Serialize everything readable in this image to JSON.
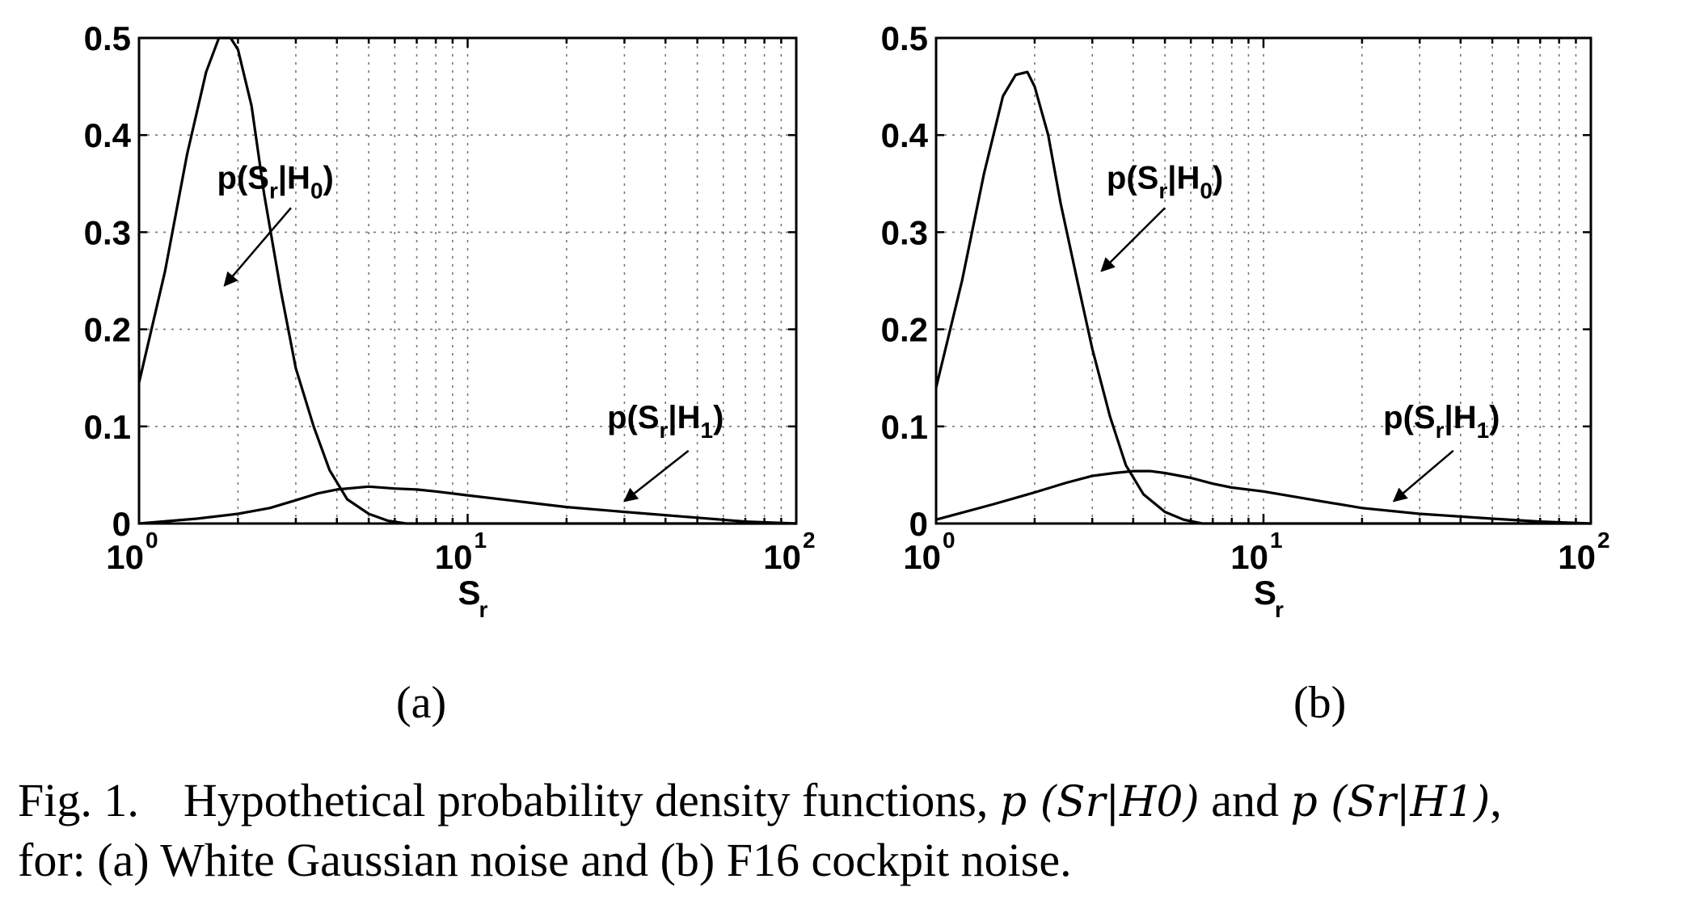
{
  "figure": {
    "caption": {
      "fig_label": "Fig. 1.",
      "text_before": "Hypothetical probability density functions,",
      "pdf_h0": "p (Sr|H0)",
      "connector": "and",
      "pdf_h1": "p (Sr|H1)",
      "text_after": ",",
      "line2": "for: (a) White Gaussian noise and (b) F16 cockpit noise."
    }
  },
  "chart_data": [
    {
      "type": "line",
      "panel_label": "(a)",
      "x_scale": "log",
      "xlim": [
        1,
        100
      ],
      "ylim": [
        0,
        0.5
      ],
      "grid": true,
      "xlabel": "S",
      "xlabel_sub": "r",
      "x_ticks": [
        {
          "base": "10",
          "exp": "0"
        },
        {
          "base": "10",
          "exp": "1"
        },
        {
          "base": "10",
          "exp": "2"
        }
      ],
      "y_ticks": [
        "0",
        "0.1",
        "0.2",
        "0.3",
        "0.4",
        "0.5"
      ],
      "series": [
        {
          "name": "p(Sr|H0)",
          "x": [
            1.0,
            1.2,
            1.4,
            1.6,
            1.75,
            1.9,
            2.0,
            2.2,
            2.4,
            2.7,
            3.0,
            3.4,
            3.8,
            4.3,
            5.0,
            5.7,
            6.5,
            7.5,
            10,
            20,
            100
          ],
          "y": [
            0.145,
            0.26,
            0.38,
            0.465,
            0.5,
            0.5,
            0.488,
            0.43,
            0.34,
            0.24,
            0.16,
            0.1,
            0.055,
            0.025,
            0.01,
            0.003,
            0.0,
            0.0,
            0.0,
            0.0,
            0.0
          ]
        },
        {
          "name": "p(Sr|H1)",
          "x": [
            1.0,
            1.5,
            2.0,
            2.5,
            3.0,
            3.5,
            4.0,
            5.0,
            6.0,
            7.0,
            8.0,
            10,
            15,
            20,
            30,
            50,
            70,
            100
          ],
          "y": [
            0.0,
            0.005,
            0.01,
            0.016,
            0.024,
            0.031,
            0.035,
            0.038,
            0.036,
            0.035,
            0.033,
            0.029,
            0.022,
            0.017,
            0.012,
            0.006,
            0.002,
            0.0
          ]
        }
      ],
      "annotations": [
        {
          "series": "p(Sr|H0)",
          "pre": "p(S",
          "sub1": "r",
          "mid": "|H",
          "sub2": "0",
          "post": ")",
          "text_x": 2.6,
          "text_y": 0.345,
          "arrow_from": [
            2.9,
            0.325
          ],
          "arrow_to": [
            1.82,
            0.245
          ]
        },
        {
          "series": "p(Sr|H1)",
          "pre": "p(S",
          "sub1": "r",
          "mid": "|H",
          "sub2": "1",
          "post": ")",
          "text_x": 40,
          "text_y": 0.098,
          "arrow_from": [
            47,
            0.075
          ],
          "arrow_to": [
            30,
            0.023
          ]
        }
      ]
    },
    {
      "type": "line",
      "panel_label": "(b)",
      "x_scale": "log",
      "xlim": [
        1,
        100
      ],
      "ylim": [
        0,
        0.5
      ],
      "grid": true,
      "xlabel": "S",
      "xlabel_sub": "r",
      "x_ticks": [
        {
          "base": "10",
          "exp": "0"
        },
        {
          "base": "10",
          "exp": "1"
        },
        {
          "base": "10",
          "exp": "2"
        }
      ],
      "y_ticks": [
        "0",
        "0.1",
        "0.2",
        "0.3",
        "0.4",
        "0.5"
      ],
      "series": [
        {
          "name": "p(Sr|H0)",
          "x": [
            1.0,
            1.2,
            1.4,
            1.6,
            1.75,
            1.9,
            2.0,
            2.2,
            2.4,
            2.7,
            3.0,
            3.4,
            3.8,
            4.3,
            5.0,
            5.7,
            6.5,
            7.5,
            10,
            20,
            100
          ],
          "y": [
            0.14,
            0.25,
            0.36,
            0.44,
            0.462,
            0.465,
            0.45,
            0.4,
            0.33,
            0.25,
            0.18,
            0.11,
            0.06,
            0.03,
            0.012,
            0.004,
            0.0,
            0.0,
            0.0,
            0.0,
            0.0
          ]
        },
        {
          "name": "p(Sr|H1)",
          "x": [
            1.0,
            1.5,
            2.0,
            2.5,
            3.0,
            3.5,
            4.0,
            4.5,
            5.0,
            6.0,
            7.0,
            8.0,
            10,
            15,
            20,
            30,
            50,
            70,
            100
          ],
          "y": [
            0.004,
            0.02,
            0.032,
            0.042,
            0.049,
            0.052,
            0.054,
            0.054,
            0.052,
            0.047,
            0.041,
            0.037,
            0.033,
            0.023,
            0.016,
            0.01,
            0.005,
            0.002,
            0.0
          ]
        }
      ],
      "annotations": [
        {
          "series": "p(Sr|H0)",
          "pre": "p(S",
          "sub1": "r",
          "mid": "|H",
          "sub2": "0",
          "post": ")",
          "text_x": 5.0,
          "text_y": 0.345,
          "arrow_from": [
            5.0,
            0.325
          ],
          "arrow_to": [
            3.2,
            0.26
          ]
        },
        {
          "series": "p(Sr|H1)",
          "pre": "p(S",
          "sub1": "r",
          "mid": "|H",
          "sub2": "1",
          "post": ")",
          "text_x": 35,
          "text_y": 0.098,
          "arrow_from": [
            38,
            0.075
          ],
          "arrow_to": [
            25,
            0.023
          ]
        }
      ]
    }
  ]
}
